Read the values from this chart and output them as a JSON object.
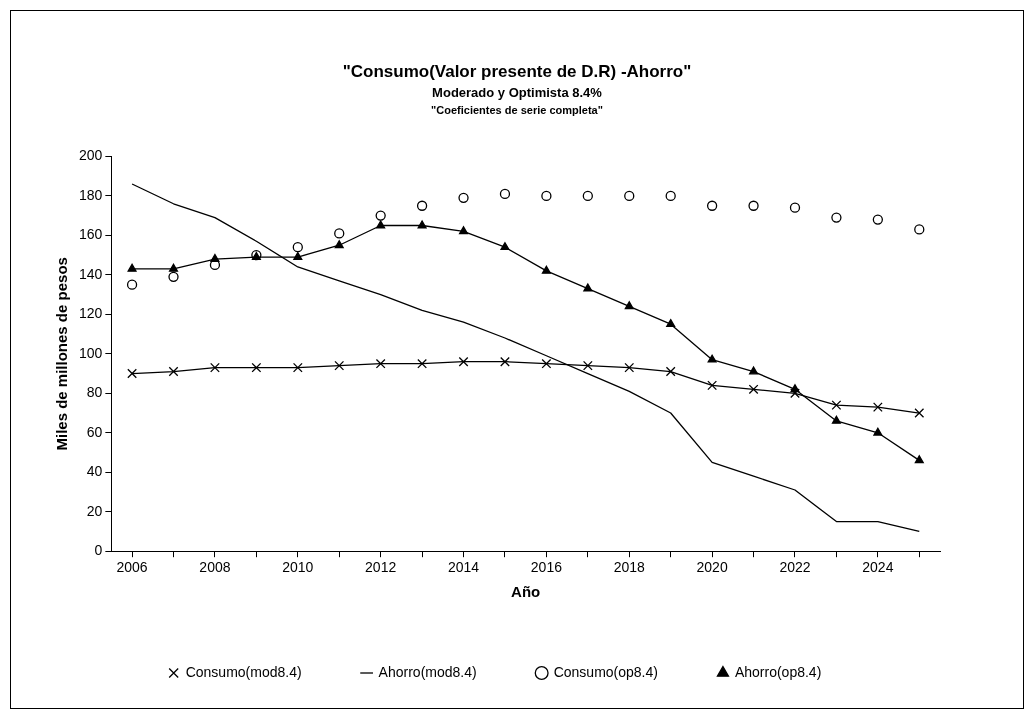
{
  "chart_data": {
    "type": "line",
    "title": "\"Consumo(Valor presente de D.R) -Ahorro\"",
    "subtitle": "Moderado y Optimista 8.4%",
    "annotations": [
      "\"Coeficientes de serie completa\""
    ],
    "xlabel": "Año",
    "ylabel": "Miles de millones de pesos",
    "categories": [
      "2006",
      null,
      "2008",
      null,
      "2010",
      null,
      "2012",
      null,
      "2014",
      null,
      "2016",
      null,
      "2018",
      null,
      "2020",
      null,
      "2022",
      null,
      "2024",
      null
    ],
    "ylim": [
      0,
      200
    ],
    "yticks": [
      0,
      20,
      40,
      60,
      80,
      100,
      120,
      140,
      160,
      180,
      200
    ],
    "grid": false,
    "legend": "bottom",
    "series": [
      {
        "name": "Consumo(mod8.4)",
        "type": "line",
        "marker": "cross",
        "color": "#000000",
        "values": [
          90,
          91,
          93,
          93,
          93,
          94,
          95,
          95,
          96,
          96,
          95,
          94,
          93,
          91,
          84,
          82,
          80,
          74,
          73,
          70
        ]
      },
      {
        "name": "Ahorro(mod8.4)",
        "type": "line",
        "marker": "none",
        "color": "#000000",
        "values": [
          186,
          176,
          169,
          157,
          144,
          137,
          130,
          122,
          116,
          108,
          99,
          90,
          81,
          70,
          45,
          38,
          31,
          15,
          15,
          10
        ]
      },
      {
        "name": "Consumo(op8.4)",
        "type": "scatter",
        "marker": "circle",
        "color": "#000000",
        "values": [
          135,
          139,
          145,
          150,
          154,
          161,
          170,
          175,
          179,
          181,
          180,
          180,
          180,
          180,
          175,
          175,
          174,
          169,
          168,
          163
        ]
      },
      {
        "name": "Ahorro(op8.4)",
        "type": "line",
        "marker": "triangle",
        "color": "#000000",
        "values": [
          143,
          143,
          148,
          149,
          149,
          155,
          165,
          165,
          162,
          154,
          142,
          133,
          124,
          115,
          97,
          91,
          82,
          66,
          60,
          46
        ]
      }
    ]
  }
}
